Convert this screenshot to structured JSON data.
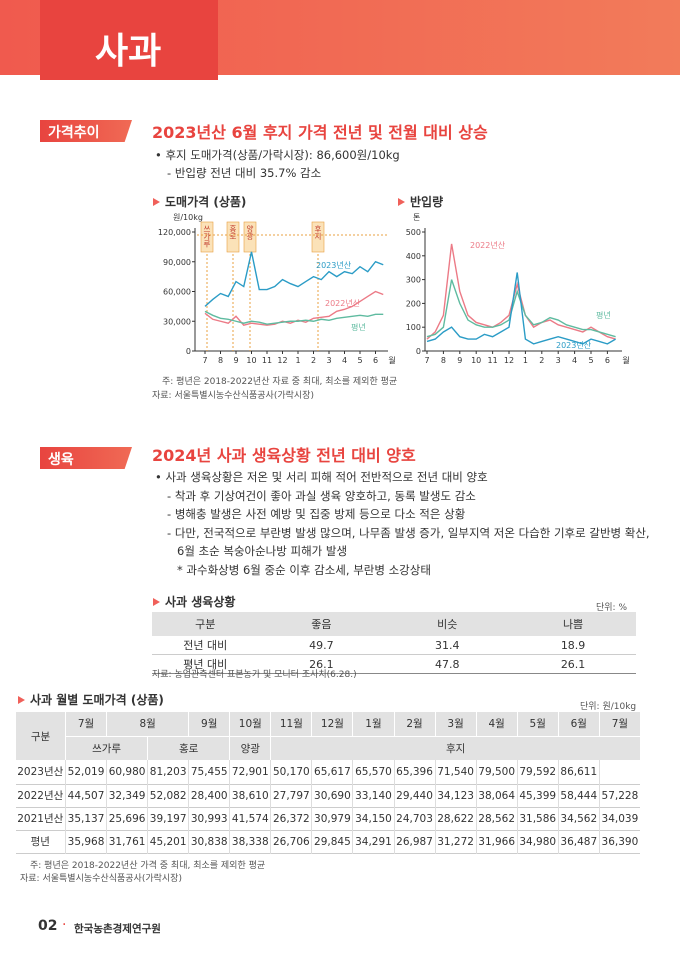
{
  "header": {
    "title": "사과"
  },
  "section1": {
    "tag": "가격추이",
    "heading": "2023년산 6월 후지 가격 전년 및 전월 대비 상승",
    "bullets": [
      "후지 도매가격(상품/가락시장): 86,600원/10kg"
    ],
    "subs": [
      "반입량 전년 대비 35.7% 감소"
    ]
  },
  "chart_data": [
    {
      "type": "line",
      "title": "도매가격 (상품)",
      "y_label": "원/10kg",
      "x_label": "월",
      "categories": [
        "7",
        null,
        "8",
        null,
        "9",
        null,
        "10",
        null,
        "11",
        null,
        "12",
        null,
        "1",
        null,
        "2",
        null,
        "3",
        null,
        "4",
        null,
        "5",
        null,
        "6",
        null
      ],
      "ylim": [
        0,
        120000
      ],
      "yticks": [
        0,
        {
          "value": 30000,
          "label": "30,000"
        },
        {
          "value": 60000,
          "label": "60,000"
        },
        {
          "value": 90000,
          "label": "90,000"
        },
        {
          "value": 120000,
          "label": "120,000"
        }
      ],
      "annotations": [
        "쓰가루",
        "홍로",
        "양광",
        "후지"
      ],
      "series": [
        {
          "name": "2023년산",
          "color": "#2b9cc6",
          "values": [
            45000,
            52000,
            58000,
            55000,
            70000,
            65000,
            100000,
            62000,
            62000,
            65000,
            72000,
            68000,
            65000,
            70000,
            75000,
            72000,
            80000,
            75000,
            80000,
            78000,
            85000,
            80000,
            90000,
            87000
          ]
        },
        {
          "name": "2022년산",
          "color": "#ec7a86",
          "values": [
            38000,
            32000,
            30000,
            28000,
            35000,
            26000,
            28000,
            27000,
            26000,
            27000,
            30000,
            28000,
            31000,
            29000,
            33000,
            34000,
            35000,
            40000,
            42000,
            45000,
            50000,
            55000,
            60000,
            57000
          ]
        },
        {
          "name": "평년",
          "color": "#5fbba0",
          "values": [
            40000,
            36000,
            33000,
            32000,
            30000,
            28000,
            30000,
            29000,
            27000,
            28000,
            29000,
            30000,
            30000,
            31000,
            30000,
            32000,
            31000,
            33000,
            34000,
            35000,
            36000,
            35000,
            37000,
            37000
          ]
        }
      ]
    },
    {
      "type": "line",
      "title": "반입량",
      "y_label": "톤",
      "x_label": "월",
      "categories": [
        "7",
        null,
        "8",
        null,
        "9",
        null,
        "10",
        null,
        "11",
        null,
        "12",
        null,
        "1",
        null,
        "2",
        null,
        "3",
        null,
        "4",
        null,
        "5",
        null,
        "6",
        null
      ],
      "ylim": [
        0,
        500
      ],
      "yticks": [
        0,
        100,
        200,
        300,
        400,
        500
      ],
      "series": [
        {
          "name": "2022년산",
          "color": "#ec7a86",
          "values": [
            50,
            80,
            150,
            450,
            250,
            150,
            120,
            110,
            100,
            120,
            150,
            280,
            150,
            100,
            120,
            130,
            110,
            100,
            90,
            80,
            100,
            80,
            60,
            50
          ]
        },
        {
          "name": "평년",
          "color": "#5fbba0",
          "values": [
            60,
            70,
            100,
            300,
            200,
            130,
            110,
            100,
            100,
            110,
            130,
            250,
            150,
            110,
            120,
            140,
            130,
            110,
            100,
            90,
            90,
            80,
            70,
            60
          ]
        },
        {
          "name": "2023년산",
          "color": "#2b9cc6",
          "values": [
            40,
            50,
            80,
            100,
            60,
            50,
            50,
            70,
            60,
            80,
            100,
            330,
            50,
            30,
            40,
            50,
            60,
            50,
            40,
            30,
            50,
            40,
            30,
            50
          ]
        }
      ]
    }
  ],
  "chart_notes": [
    "주: 평년은 2018-2022년산 자료 중 최대, 최소를 제외한 평균",
    "자료: 서울특별시농수산식품공사(가락시장)"
  ],
  "section2": {
    "tag": "생육",
    "heading": "2024년 사과 생육상황 전년 대비 양호",
    "bullets": [
      "사과 생육상황은 저온 및 서리 피해 적어 전반적으로 전년 대비 양호"
    ],
    "subs": [
      "착과 후 기상여건이 좋아 과실 생육 양호하고, 동록 발생도 감소",
      "병해충 발생은 사전 예방 및 집중 방제 등으로 다소 적은 상황",
      "다만, 전국적으로 부란병 발생 많으며, 나무좀 발생 증가, 일부지역 저온 다습한 기후로 갈반병 확산,",
      "6월 초순 복숭아순나방 피해가 발생"
    ],
    "star": "과수화상병 6월 중순 이후 감소세, 부란병 소강상태"
  },
  "table1": {
    "title": "사과 생육상황",
    "unit": "단위: %",
    "header": [
      "구분",
      "좋음",
      "비슷",
      "나쁨"
    ],
    "rows": [
      [
        "전년 대비",
        "49.7",
        "31.4",
        "18.9"
      ],
      [
        "평년 대비",
        "26.1",
        "47.8",
        "26.1"
      ]
    ],
    "source": "자료: 농업관측센터 표본농가 및 모니터 조사치(6.28.)"
  },
  "table2": {
    "title": "사과 월별 도매가격 (상품)",
    "unit": "단위: 원/10kg",
    "corner": "구분",
    "months": [
      "7월",
      "8월",
      "9월",
      "10월",
      "11월",
      "12월",
      "1월",
      "2월",
      "3월",
      "4월",
      "5월",
      "6월",
      "7월"
    ],
    "varieties": [
      "쓰가루",
      "홍로",
      "양광",
      "후지"
    ],
    "rows": [
      [
        "2023년산",
        "52,019",
        "60,980",
        "81,203",
        "75,455",
        "72,901",
        "50,170",
        "65,617",
        "65,570",
        "65,396",
        "71,540",
        "79,500",
        "79,592",
        "86,611"
      ],
      [
        "2022년산",
        "44,507",
        "32,349",
        "52,082",
        "28,400",
        "38,610",
        "27,797",
        "30,690",
        "33,140",
        "29,440",
        "34,123",
        "38,064",
        "45,399",
        "58,444",
        "57,228"
      ],
      [
        "2021년산",
        "35,137",
        "25,696",
        "39,197",
        "30,993",
        "41,574",
        "26,372",
        "30,979",
        "34,150",
        "24,703",
        "28,622",
        "28,562",
        "31,586",
        "34,562",
        "34,039"
      ],
      [
        "평년",
        "35,968",
        "31,761",
        "45,201",
        "30,838",
        "38,338",
        "26,706",
        "29,845",
        "34,291",
        "26,987",
        "31,272",
        "31,966",
        "34,980",
        "36,487",
        "36,390"
      ]
    ],
    "notes": [
      "주: 평년은 2018-2022년산 가격 중 최대, 최소를 제외한 평균",
      "자료: 서울특별시농수산식품공사(가락시장)"
    ]
  },
  "footer": {
    "page": "02",
    "org": "한국농촌경제연구원"
  }
}
